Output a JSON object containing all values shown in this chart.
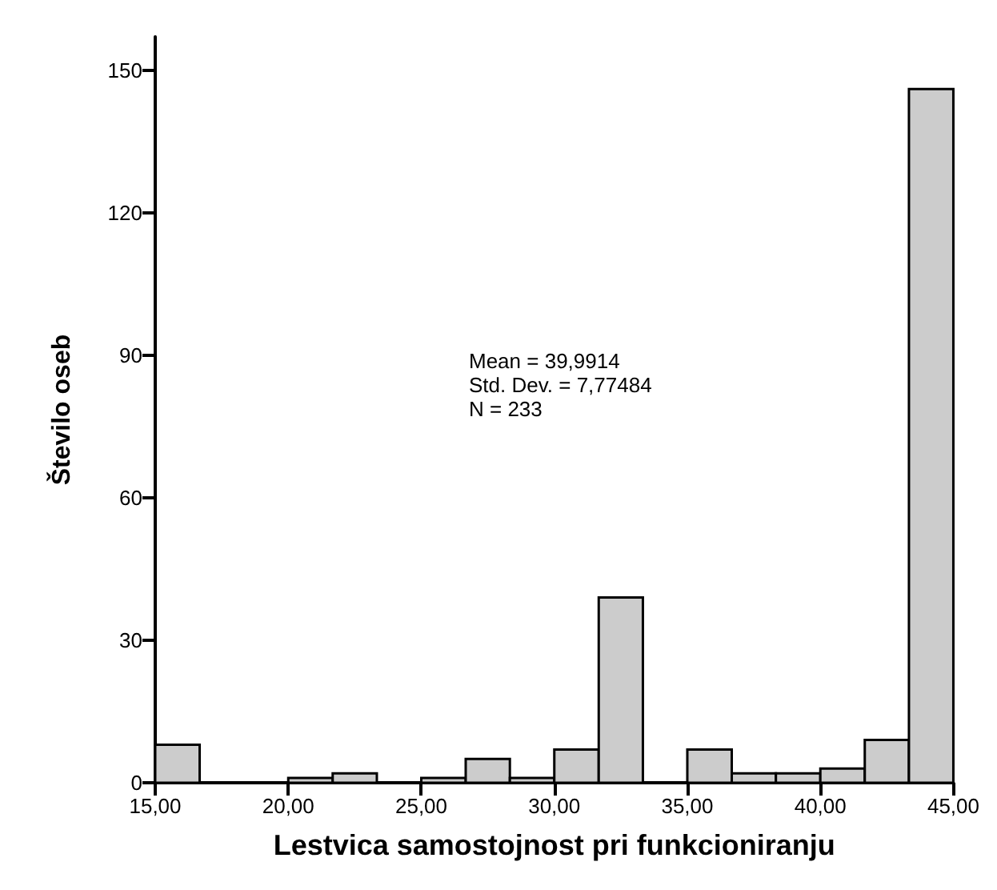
{
  "chart_data": {
    "type": "histogram",
    "xlabel": "Lestvica samostojnost pri funkcioniranju",
    "ylabel": "Število oseb",
    "bins": [
      15,
      16.67,
      18.33,
      20,
      21.67,
      23.33,
      25,
      26.67,
      28.33,
      30,
      31.67,
      33.33,
      35,
      36.67,
      38.33,
      40,
      41.67,
      43.33,
      45
    ],
    "values": [
      8,
      0,
      0,
      1,
      2,
      0,
      1,
      5,
      1,
      7,
      39,
      0,
      7,
      2,
      2,
      3,
      9,
      146
    ],
    "color": "#cccccc",
    "annotations": [
      "Mean = 39,9914\nStd. Dev. = 7,77484\nN = 233"
    ],
    "xlim": [
      15,
      45
    ],
    "xticks": [
      {
        "value": 15,
        "label": "15,00"
      },
      {
        "value": 20,
        "label": "20,00"
      },
      {
        "value": 25,
        "label": "25,00"
      },
      {
        "value": 30,
        "label": "30,00"
      },
      {
        "value": 35,
        "label": "35,00"
      },
      {
        "value": 40,
        "label": "40,00"
      },
      {
        "value": 45,
        "label": "45,00"
      }
    ],
    "ylim": [
      0,
      157
    ],
    "yticks": [
      0,
      30,
      60,
      90,
      120,
      150
    ],
    "grid": false
  }
}
